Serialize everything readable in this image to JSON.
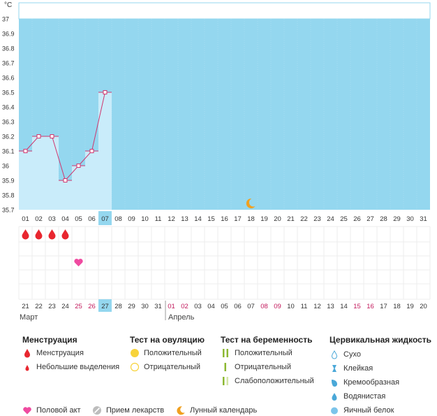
{
  "chart_data": {
    "type": "line",
    "ylabel": "°C",
    "y_ticks": [
      "37",
      "36.9",
      "36.8",
      "36.7",
      "36.6",
      "36.5",
      "36.4",
      "36.3",
      "36.2",
      "36.1",
      "36",
      "35.9",
      "35.8",
      "35.7"
    ],
    "ylim": [
      35.7,
      37.0
    ],
    "cycle_days": [
      "01",
      "02",
      "03",
      "04",
      "05",
      "06",
      "07",
      "08",
      "09",
      "10",
      "11",
      "12",
      "13",
      "14",
      "15",
      "16",
      "17",
      "18",
      "19",
      "20",
      "21",
      "22",
      "23",
      "24",
      "25",
      "26",
      "27",
      "28",
      "29",
      "30",
      "31"
    ],
    "current_day_index": 6,
    "temperatures": [
      36.1,
      36.2,
      36.2,
      35.9,
      36.0,
      36.1,
      36.5
    ],
    "moon_day_index": 17,
    "menstruation_day_indices": [
      0,
      1,
      2,
      3
    ],
    "intercourse_day_index": 4,
    "dates": [
      "21",
      "22",
      "23",
      "24",
      "25",
      "26",
      "27",
      "28",
      "29",
      "30",
      "31",
      "01",
      "02",
      "03",
      "04",
      "05",
      "06",
      "07",
      "08",
      "09",
      "10",
      "11",
      "12",
      "13",
      "14",
      "15",
      "16",
      "17",
      "18",
      "19",
      "20"
    ],
    "date_colors": [
      "#333",
      "#333",
      "#333",
      "#333",
      "#c2185b",
      "#c2185b",
      "#333",
      "#333",
      "#333",
      "#333",
      "#333",
      "#c2185b",
      "#c2185b",
      "#333",
      "#333",
      "#333",
      "#333",
      "#333",
      "#c2185b",
      "#c2185b",
      "#333",
      "#333",
      "#333",
      "#333",
      "#333",
      "#c2185b",
      "#c2185b",
      "#333",
      "#333",
      "#333",
      "#333"
    ],
    "month_labels": [
      "Март",
      "Апрель"
    ]
  },
  "legend": {
    "menstruation": {
      "title": "Менструация",
      "items": [
        "Менструация",
        "Небольшие выделения"
      ]
    },
    "ovulation": {
      "title": "Тест на овуляцию",
      "items": [
        "Положительный",
        "Отрицательный"
      ]
    },
    "pregnancy": {
      "title": "Тест на беременность",
      "items": [
        "Положительный",
        "Отрицательный",
        "Слабоположительный"
      ]
    },
    "cervical": {
      "title": "Цервикальная жидкость",
      "items": [
        "Сухо",
        "Клейкая",
        "Кремообразная",
        "Водянистая",
        "Яичный белок"
      ]
    },
    "other": [
      "Половой акт",
      "Прием лекарств",
      "Лунный календарь"
    ]
  },
  "colors": {
    "plot_bg": "#94d7ef",
    "bar_fill": "#c9ecfa",
    "line": "#d0366e",
    "drop": "#e8262f",
    "heart": "#ef4aa0",
    "moon": "#f0a020",
    "today": "#94d7ef"
  }
}
